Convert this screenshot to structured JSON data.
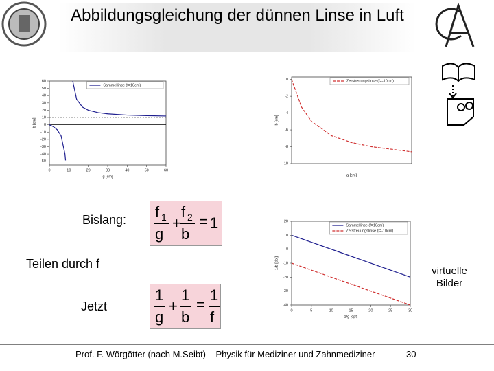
{
  "header": {
    "title": "Abbildungsgleichung der dünnen Linse in Luft"
  },
  "labels": {
    "bislang": "Bislang:",
    "teilen": "Teilen durch f",
    "jetzt": "Jetzt",
    "virtuell": "virtuelle Bilder"
  },
  "formulas": [
    {
      "terms": [
        {
          "num": "f",
          "sub": "1",
          "den": "g"
        },
        {
          "num": "f",
          "sub": "2",
          "den": "b"
        }
      ],
      "plus": "+",
      "eq": "=",
      "rhs": "1"
    },
    {
      "terms": [
        {
          "num": "1",
          "den": "g"
        },
        {
          "num": "1",
          "den": "b"
        }
      ],
      "plus": "+",
      "eq": "=",
      "rhs_num": "1",
      "rhs_den": "f"
    }
  ],
  "footer": {
    "text": "Prof. F. Wörgötter (nach M.Seibt) – Physik für Mediziner und Zahnmediziner",
    "page": "30"
  },
  "charts": [
    {
      "type": "line",
      "xlabel": "g [cm]",
      "ylabel": "b [cm]",
      "x": [
        0,
        2,
        4,
        6,
        8,
        8.3,
        10,
        12,
        14,
        17,
        20,
        25,
        30,
        40,
        50,
        60
      ],
      "series": [
        {
          "name": "Sammellinse (f=10cm)",
          "color": "#1f1f8f",
          "dash": false,
          "values": [
            0,
            -2.5,
            -6.7,
            -15,
            -40,
            -48.8,
            null,
            60,
            35,
            24.3,
            20,
            16.7,
            15,
            13.3,
            12.5,
            12
          ]
        }
      ],
      "xlim": [
        0,
        60
      ],
      "ylim": [
        -55,
        60
      ],
      "xticks": [
        0,
        10,
        20,
        30,
        40,
        50,
        60
      ],
      "yticks": [
        -50,
        -40,
        -30,
        -20,
        -10,
        0,
        10,
        20,
        30,
        40,
        50,
        60
      ],
      "ref_x": 10,
      "ref_y": 10
    },
    {
      "type": "line",
      "xlabel": "g [cm]",
      "ylabel": "b [cm]",
      "x": [
        0,
        5,
        10,
        20,
        30,
        40,
        50,
        60
      ],
      "series": [
        {
          "name": "Zerstreuungslinse (f=-10cm)",
          "color": "#d03030",
          "dash": true,
          "values": [
            0,
            -3.3,
            -5,
            -6.7,
            -7.5,
            -8,
            -8.3,
            -8.6
          ]
        }
      ],
      "xlim": [
        0,
        60
      ],
      "ylim": [
        -10,
        0.3
      ],
      "xticks": [],
      "yticks": [
        -10,
        -8,
        -6,
        -4,
        -2,
        0
      ]
    },
    {
      "type": "line",
      "xlabel": "1/g [dpt]",
      "ylabel": "1/b [dpt]",
      "x": [
        0,
        30
      ],
      "series": [
        {
          "name": "Sammellinse (f=10cm)",
          "color": "#1f1f8f",
          "dash": false,
          "values": [
            10,
            -20
          ]
        },
        {
          "name": "Zerstreuungslinse (f=-10cm)",
          "color": "#d03030",
          "dash": true,
          "values": [
            -10,
            -40
          ]
        }
      ],
      "xlim": [
        0,
        30
      ],
      "ylim": [
        -40,
        20
      ],
      "xticks": [
        0,
        5,
        10,
        15,
        20,
        25,
        30
      ],
      "yticks": [
        -40,
        -30,
        -20,
        -10,
        0,
        10,
        20
      ],
      "ref_x": 10
    }
  ]
}
